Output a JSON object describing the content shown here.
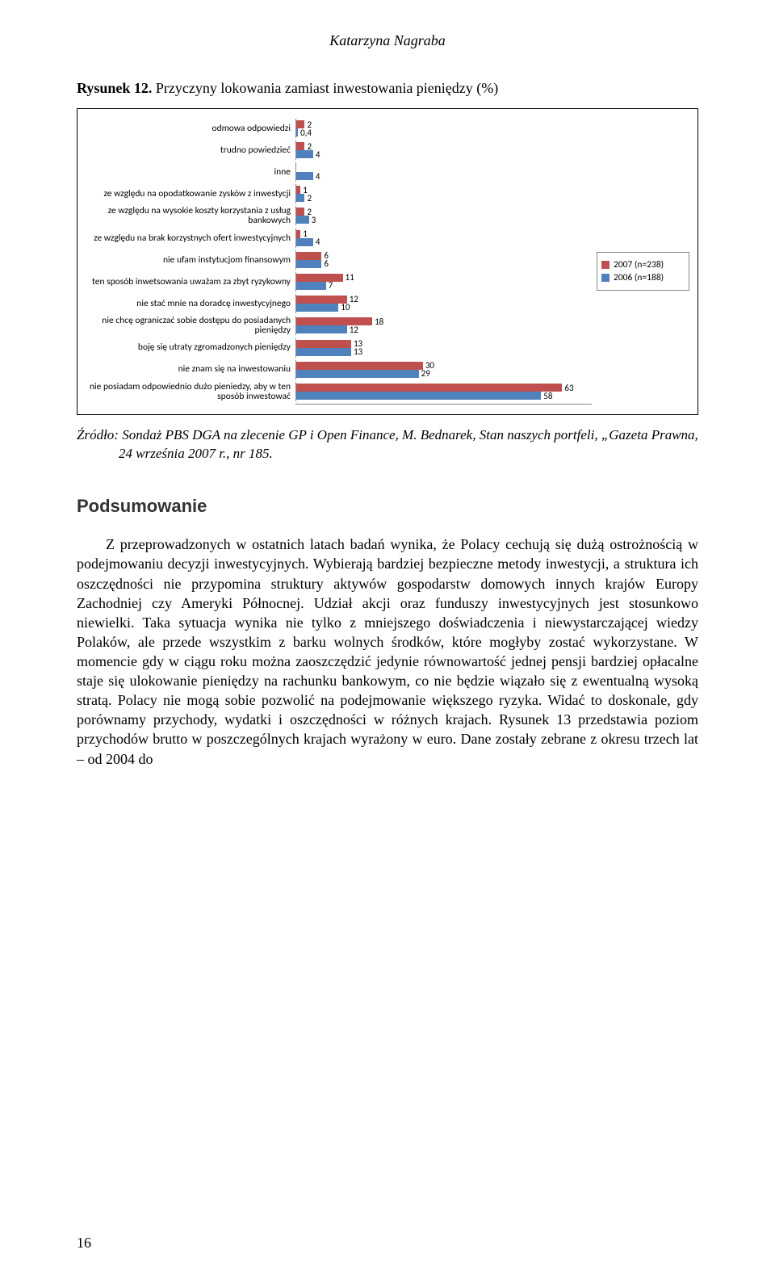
{
  "author": "Katarzyna Nagraba",
  "figure_title_prefix": "Rysunek 12.",
  "figure_title_rest": " Przyczyny lokowania zamiast inwestowania pieniędzy (%)",
  "chart": {
    "color_2007": "#c0504d",
    "color_2006": "#4f81bd",
    "max_value": 70,
    "legend": [
      {
        "label": "2007 (n=238)",
        "color": "#c0504d"
      },
      {
        "label": "2006 (n=188)",
        "color": "#4f81bd"
      }
    ],
    "categories": [
      {
        "label": "odmowa odpowiedzi",
        "v2007": 2,
        "v2006": 0.4,
        "lbl2007": "2",
        "lbl2006": "0,4"
      },
      {
        "label": "trudno powiedzieć",
        "v2007": 2,
        "v2006": 4,
        "lbl2007": "2",
        "lbl2006": "4"
      },
      {
        "label": "inne",
        "v2007": null,
        "v2006": 4,
        "lbl2007": "",
        "lbl2006": "4"
      },
      {
        "label": "ze względu na opodatkowanie zysków z inwestycji",
        "v2007": 1,
        "v2006": 2,
        "lbl2007": "1",
        "lbl2006": "2"
      },
      {
        "label": "ze względu na wysokie koszty korzystania z usług bankowych",
        "v2007": 2,
        "v2006": 3,
        "lbl2007": "2",
        "lbl2006": "3"
      },
      {
        "label": "ze względu na brak korzystnych ofert inwestycyjnych",
        "v2007": 1,
        "v2006": 4,
        "lbl2007": "1",
        "lbl2006": "4"
      },
      {
        "label": "nie ufam instytucjom finansowym",
        "v2007": 6,
        "v2006": 6,
        "lbl2007": "6",
        "lbl2006": "6"
      },
      {
        "label": "ten sposób inwetsowania uważam za zbyt ryzykowny",
        "v2007": 11,
        "v2006": 7,
        "lbl2007": "11",
        "lbl2006": "7"
      },
      {
        "label": "nie stać mnie na doradcę inwestycyjnego",
        "v2007": 12,
        "v2006": 10,
        "lbl2007": "12",
        "lbl2006": "10"
      },
      {
        "label": "nie chcę ograniczać sobie dostępu do posiadanych pieniędzy",
        "v2007": 18,
        "v2006": 12,
        "lbl2007": "18",
        "lbl2006": "12"
      },
      {
        "label": "boję się utraty zgromadzonych pieniędzy",
        "v2007": 13,
        "v2006": 13,
        "lbl2007": "13",
        "lbl2006": "13"
      },
      {
        "label": "nie znam się na inwestowaniu",
        "v2007": 30,
        "v2006": 29,
        "lbl2007": "30",
        "lbl2006": "29"
      },
      {
        "label": "nie posiadam odpowiednio dużo pieniedzy, aby w ten sposób inwestować",
        "v2007": 63,
        "v2006": 58,
        "lbl2007": "63",
        "lbl2006": "58"
      }
    ]
  },
  "source_text": "Źródło: Sondaż PBS DGA na zlecenie GP i Open Finance, M. Bednarek, Stan naszych portfeli, „Gazeta Prawna, 24 września 2007 r., nr 185.",
  "section_heading": "Podsumowanie",
  "body": "Z przeprowadzonych w ostatnich latach badań wynika, że Polacy cechują się dużą ostrożnością w podejmowaniu decyzji inwestycyjnych. Wybierają bardziej bezpieczne metody inwestycji, a struktura ich oszczędności nie przypomina struktury aktywów gospodarstw domowych innych krajów Europy Zachodniej czy Ameryki Północnej. Udział akcji oraz funduszy inwestycyjnych jest stosunkowo niewielki. Taka sytuacja wynika nie tylko z mniejszego doświadczenia i niewystarczającej wiedzy Polaków, ale przede wszystkim z barku wolnych środków, które mogłyby zostać wykorzystane. W momencie gdy w ciągu roku można zaoszczędzić jedynie równowartość jednej pensji bardziej opłacalne staje się ulokowanie pieniędzy na rachunku bankowym, co nie będzie wiązało się z ewentualną wysoką stratą. Polacy nie mogą sobie pozwolić na podejmowanie większego ryzyka. Widać to doskonale, gdy porównamy przychody, wydatki i oszczędności w różnych krajach. Rysunek 13 przedstawia poziom przychodów brutto w poszczególnych krajach wyrażony w euro. Dane zostały zebrane z okresu trzech lat – od 2004 do",
  "page_number": "16"
}
